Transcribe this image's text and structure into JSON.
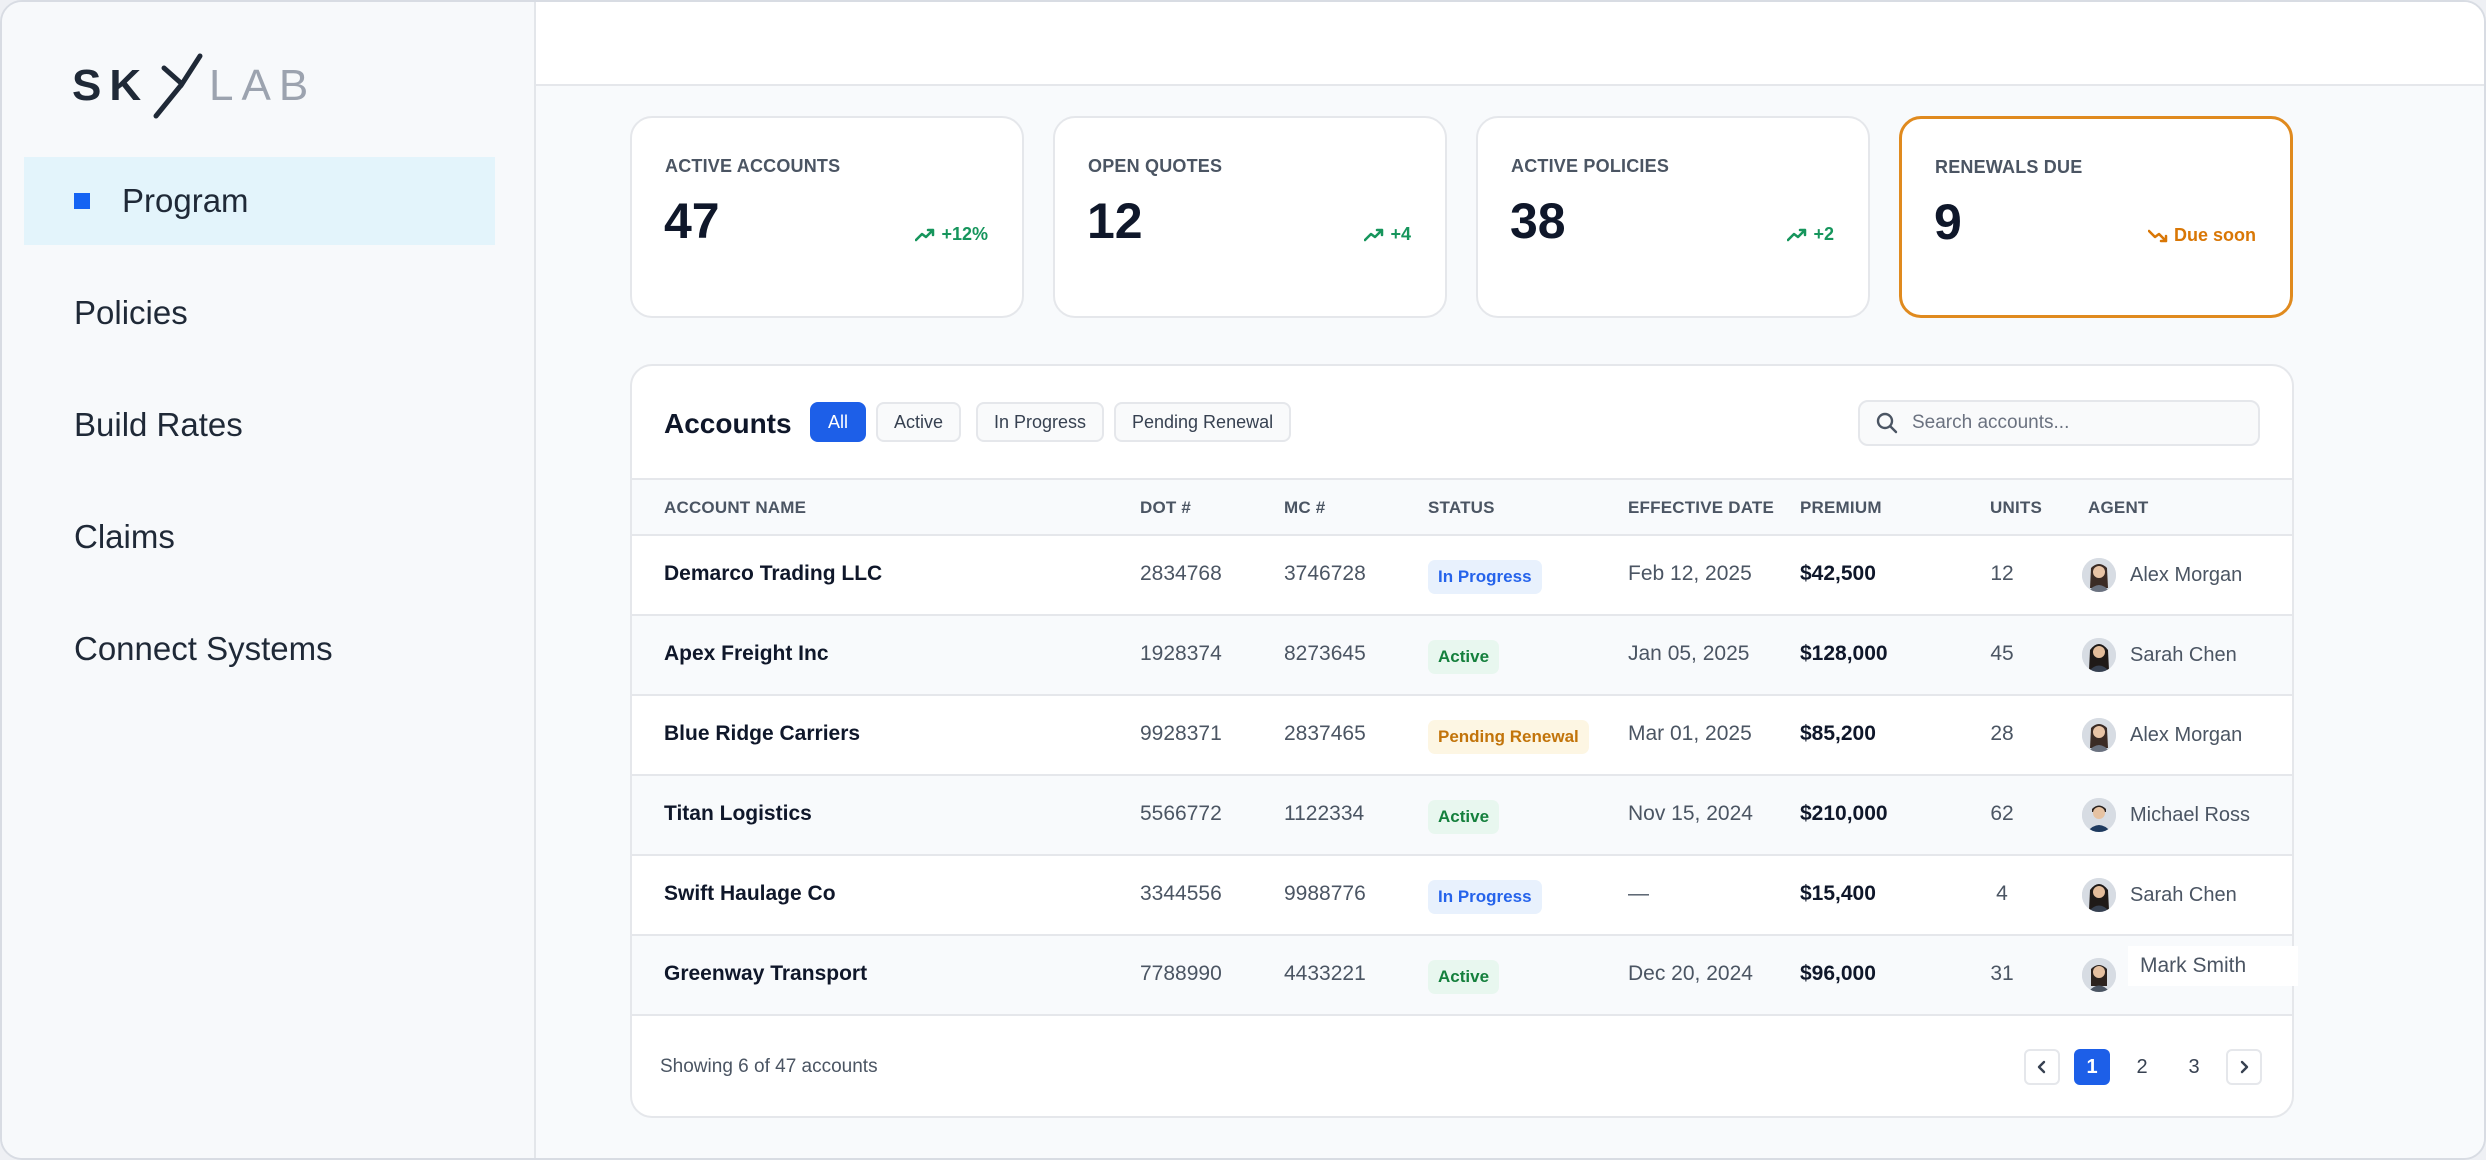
{
  "brand": {
    "logo_text": "SKYLAB"
  },
  "sidebar": {
    "items": [
      {
        "label": "Program",
        "active": true
      },
      {
        "label": "Policies"
      },
      {
        "label": "Build Rates"
      },
      {
        "label": "Claims"
      },
      {
        "label": "Connect Systems"
      }
    ]
  },
  "kpis": [
    {
      "label": "ACTIVE ACCOUNTS",
      "value": "47",
      "delta": "+12%",
      "trend": "up"
    },
    {
      "label": "OPEN QUOTES",
      "value": "12",
      "delta": "+4",
      "trend": "up"
    },
    {
      "label": "ACTIVE POLICIES",
      "value": "38",
      "delta": "+2",
      "trend": "up"
    },
    {
      "label": "RENEWALS DUE",
      "value": "9",
      "delta": "Due soon",
      "trend": "warn"
    }
  ],
  "accounts": {
    "title": "Accounts",
    "filters": [
      "All",
      "Active",
      "In Progress",
      "Pending Renewal"
    ],
    "selected_filter": "All",
    "search_placeholder": "Search accounts...",
    "columns": [
      "ACCOUNT NAME",
      "DOT #",
      "MC #",
      "STATUS",
      "EFFECTIVE DATE",
      "PREMIUM",
      "UNITS",
      "AGENT"
    ],
    "rows": [
      {
        "name": "Demarco Trading LLC",
        "dot": "2834768",
        "mc": "3746728",
        "status": "In Progress",
        "date": "Feb 12, 2025",
        "premium": "$42,500",
        "units": "12",
        "agent": "Alex Morgan"
      },
      {
        "name": "Apex Freight Inc",
        "dot": "1928374",
        "mc": "8273645",
        "status": "Active",
        "date": "Jan 05, 2025",
        "premium": "$128,000",
        "units": "45",
        "agent": "Sarah Chen"
      },
      {
        "name": "Blue Ridge Carriers",
        "dot": "9928371",
        "mc": "2837465",
        "status": "Pending Renewal",
        "date": "Mar 01, 2025",
        "premium": "$85,200",
        "units": "28",
        "agent": "Alex Morgan"
      },
      {
        "name": "Titan Logistics",
        "dot": "5566772",
        "mc": "1122334",
        "status": "Active",
        "date": "Nov 15, 2024",
        "premium": "$210,000",
        "units": "62",
        "agent": "Michael Ross"
      },
      {
        "name": "Swift Haulage Co",
        "dot": "3344556",
        "mc": "9988776",
        "status": "In Progress",
        "date": "—",
        "premium": "$15,400",
        "units": "4",
        "agent": "Sarah Chen"
      },
      {
        "name": "Greenway Transport",
        "dot": "7788990",
        "mc": "4433221",
        "status": "Active",
        "date": "Dec 20, 2024",
        "premium": "$96,000",
        "units": "31",
        "agent": ""
      }
    ],
    "tooltip": "Mark Smith",
    "footer": "Showing 6 of 47 accounts",
    "pages": [
      "1",
      "2",
      "3"
    ],
    "current_page": "1"
  },
  "colors": {
    "accent": "#1d5fe8",
    "nav_marker": "#1463f3",
    "active_nav_bg": "#e3f4fb",
    "warn": "#d97706",
    "success": "#16955c"
  }
}
